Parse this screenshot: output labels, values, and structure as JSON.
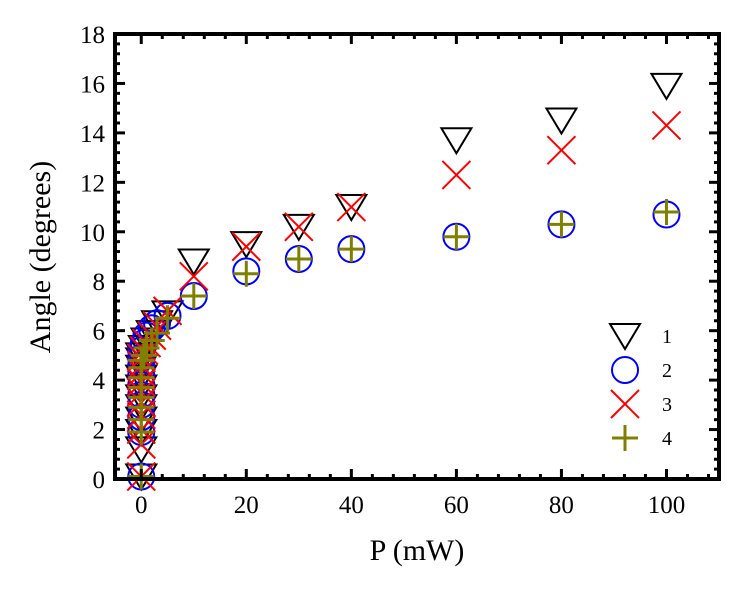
{
  "chart_data": {
    "type": "scatter",
    "title": "",
    "xlabel": "P (mW)",
    "ylabel": "Angle (degrees)",
    "xlim": [
      -5,
      110
    ],
    "ylim": [
      0,
      18
    ],
    "xticks": [
      0,
      20,
      40,
      60,
      80,
      100
    ],
    "xtick_labels": [
      "0",
      "20",
      "40",
      "60",
      "80",
      "100"
    ],
    "yticks": [
      0,
      2,
      4,
      6,
      8,
      10,
      12,
      14,
      16,
      18
    ],
    "ytick_labels": [
      "0",
      "2",
      "4",
      "6",
      "8",
      "10",
      "12",
      "14",
      "16",
      "18"
    ],
    "grid": false,
    "legend_position": "right-middle",
    "series": [
      {
        "name": "1",
        "marker": "triangle-down",
        "color": "#000000",
        "x": [
          0,
          0,
          0,
          0,
          0,
          0,
          0,
          0,
          0,
          0,
          0,
          0.5,
          1,
          2,
          3,
          5,
          10,
          20,
          30,
          40,
          60,
          80,
          100
        ],
        "y": [
          0.1,
          1.2,
          1.9,
          2.4,
          2.9,
          3.3,
          3.7,
          4.1,
          4.5,
          4.8,
          5.0,
          5.3,
          5.6,
          5.9,
          6.3,
          6.7,
          8.8,
          9.5,
          10.2,
          11.0,
          13.7,
          14.5,
          15.9
        ]
      },
      {
        "name": "2",
        "marker": "circle",
        "color": "#0000ff",
        "x": [
          0,
          0,
          0,
          0,
          0,
          0,
          0,
          0,
          0,
          0,
          0.5,
          1,
          2,
          3,
          5,
          10,
          20,
          30,
          40,
          60,
          80,
          100
        ],
        "y": [
          0.1,
          1.9,
          2.5,
          3.0,
          3.4,
          3.8,
          4.2,
          4.6,
          4.9,
          5.2,
          5.5,
          5.8,
          6.1,
          6.3,
          6.6,
          7.4,
          8.4,
          8.9,
          9.3,
          9.8,
          10.3,
          10.7
        ]
      },
      {
        "name": "3",
        "marker": "x",
        "color": "#ff0000",
        "x": [
          0,
          0,
          0,
          0,
          0,
          0,
          0,
          0,
          0,
          0,
          0.5,
          1,
          2,
          3,
          5,
          10,
          20,
          30,
          40,
          60,
          80,
          100
        ],
        "y": [
          0.1,
          1.4,
          2.0,
          2.6,
          3.1,
          3.5,
          3.9,
          4.3,
          4.6,
          4.9,
          5.2,
          5.5,
          5.8,
          6.2,
          6.8,
          8.2,
          9.4,
          10.2,
          11.0,
          12.3,
          13.3,
          14.3
        ]
      },
      {
        "name": "4",
        "marker": "plus",
        "color": "#808000",
        "x": [
          0,
          0,
          0,
          0,
          0,
          0,
          0,
          0,
          0,
          0.5,
          1,
          2,
          3,
          5,
          10,
          20,
          30,
          40,
          60,
          80,
          100
        ],
        "y": [
          0.1,
          1.9,
          2.4,
          2.9,
          3.3,
          3.7,
          4.1,
          4.5,
          4.8,
          5.0,
          5.3,
          5.6,
          5.9,
          6.5,
          7.4,
          8.3,
          8.9,
          9.3,
          9.8,
          10.3,
          10.8
        ]
      }
    ],
    "legend": [
      {
        "label": "1",
        "marker": "triangle-down",
        "color": "#000000"
      },
      {
        "label": "2",
        "marker": "circle",
        "color": "#0000ff"
      },
      {
        "label": "3",
        "marker": "x",
        "color": "#ff0000"
      },
      {
        "label": "4",
        "marker": "plus",
        "color": "#808000"
      }
    ]
  }
}
